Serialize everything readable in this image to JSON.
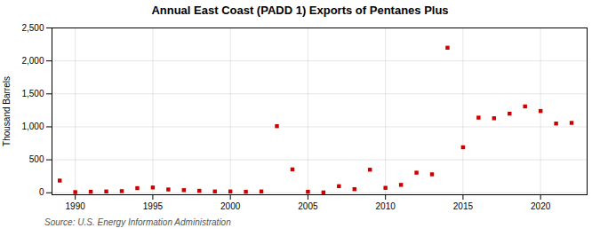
{
  "chart_data": {
    "type": "scatter",
    "title": "Annual East Coast (PADD 1) Exports of Pentanes Plus",
    "ylabel": "Thousand Barrels",
    "source": "Source: U.S. Energy Information Administration",
    "x": [
      1989,
      1990,
      1991,
      1992,
      1993,
      1994,
      1995,
      1996,
      1997,
      1998,
      1999,
      2000,
      2001,
      2002,
      2003,
      2004,
      2005,
      2006,
      2007,
      2008,
      2009,
      2010,
      2011,
      2012,
      2013,
      2014,
      2015,
      2016,
      2017,
      2018,
      2019,
      2020,
      2021,
      2022
    ],
    "values": [
      185,
      10,
      15,
      20,
      25,
      70,
      80,
      50,
      40,
      30,
      20,
      20,
      15,
      20,
      1010,
      355,
      15,
      5,
      100,
      55,
      350,
      75,
      120,
      305,
      280,
      2200,
      690,
      1140,
      1130,
      1200,
      1310,
      1240,
      1050,
      1060
    ],
    "color": "#cc0000",
    "marker": "square",
    "xlim": [
      1988.5,
      2023
    ],
    "ylim": [
      -30,
      2500
    ],
    "xticks": [
      1990,
      1995,
      2000,
      2005,
      2010,
      2015,
      2020
    ],
    "yticks": [
      0,
      500,
      {
        "value": 1000,
        "label": "1,000"
      },
      {
        "value": 1500,
        "label": "1,500"
      },
      {
        "value": 2000,
        "label": "2,000"
      },
      {
        "value": 2500,
        "label": "2,500"
      }
    ],
    "grid": true
  }
}
